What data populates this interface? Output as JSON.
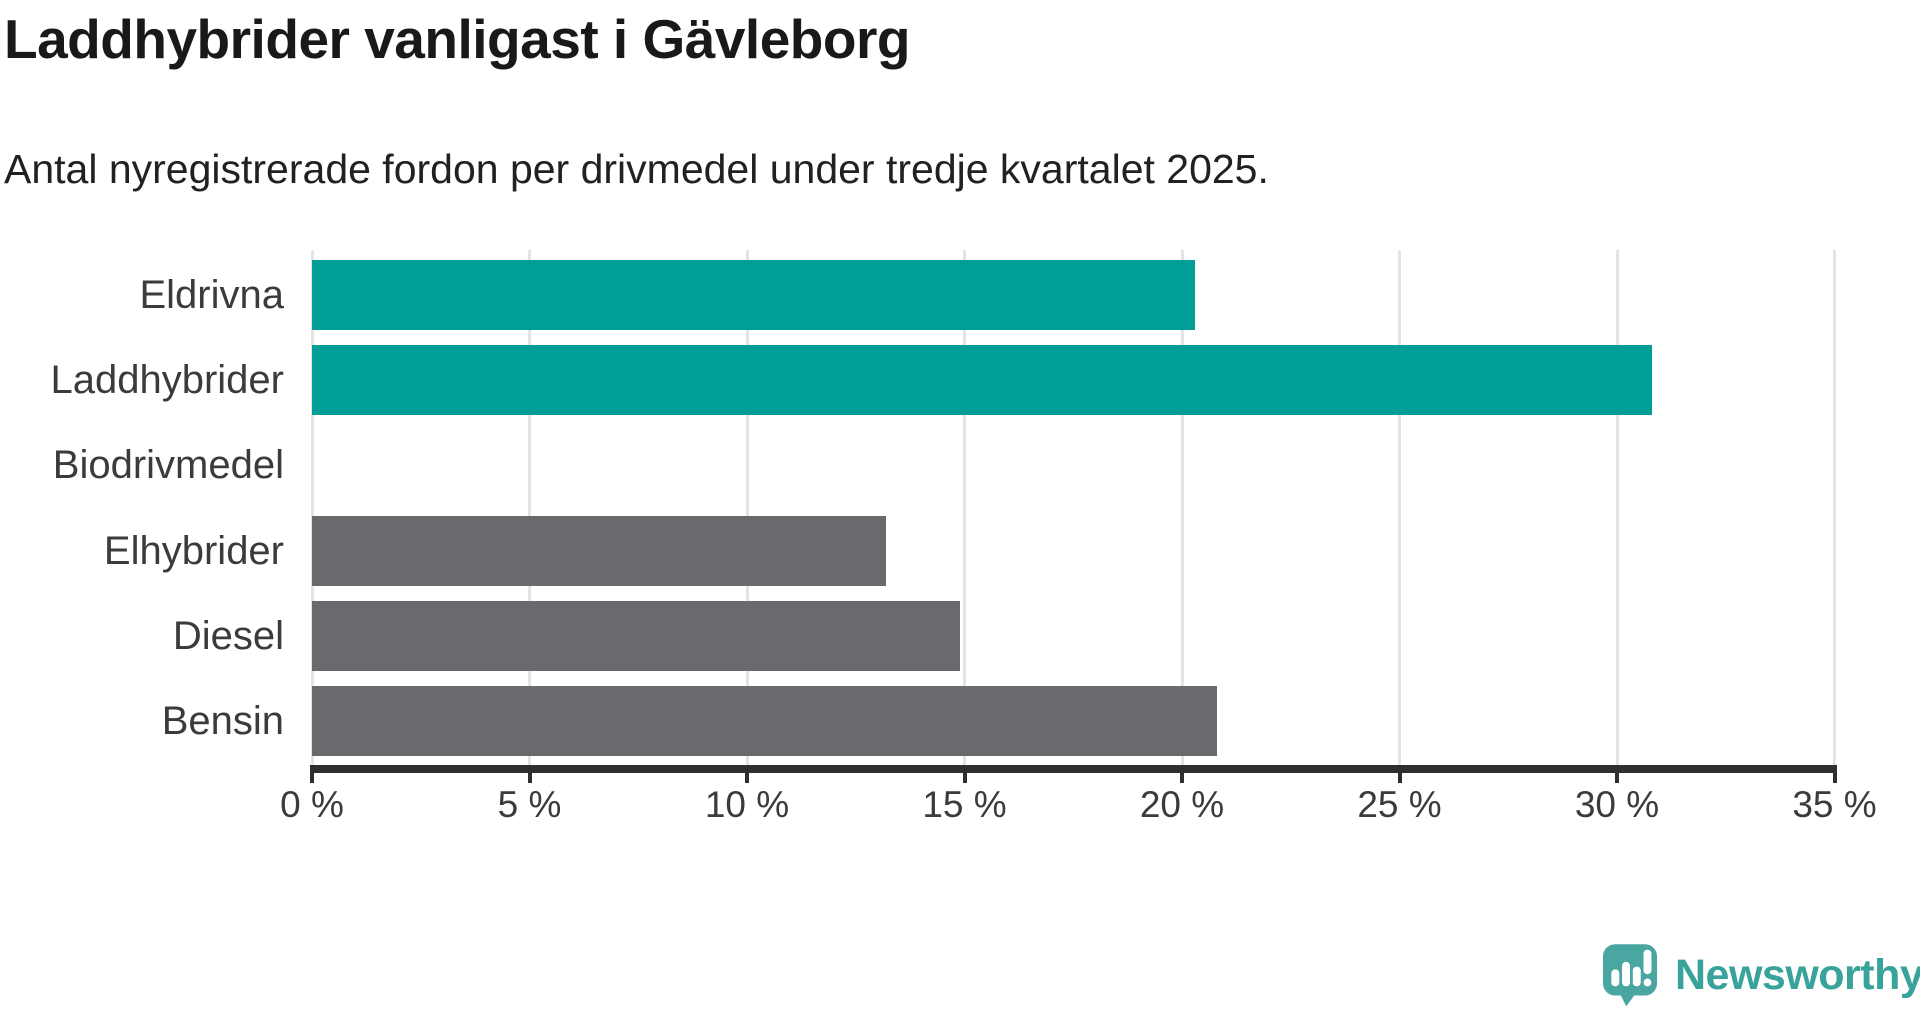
{
  "title": "Laddhybrider vanligast i Gävleborg",
  "subtitle": "Antal nyregistrerade fordon per drivmedel under tredje kvartalet 2025.",
  "chart_data": {
    "type": "bar",
    "orientation": "horizontal",
    "title": "Laddhybrider vanligast i Gävleborg",
    "subtitle": "Antal nyregistrerade fordon per drivmedel under tredje kvartalet 2025.",
    "categories": [
      "Eldrivna",
      "Laddhybrider",
      "Biodrivmedel",
      "Elhybrider",
      "Diesel",
      "Bensin"
    ],
    "values": [
      20.3,
      30.8,
      0,
      13.2,
      14.9,
      20.8
    ],
    "value_unit": "%",
    "bar_colors": [
      "#009E96",
      "#009E96",
      "#6A6A6E",
      "#6A6A6E",
      "#6A6A6E",
      "#6A6A6E"
    ],
    "xlim": [
      0,
      35
    ],
    "x_ticks": [
      0,
      5,
      10,
      15,
      20,
      25,
      30,
      35
    ],
    "x_tick_labels": [
      "0 %",
      "5 %",
      "10 %",
      "15 %",
      "20 %",
      "25 %",
      "30 %",
      "35 %"
    ],
    "grid": true,
    "legend": false
  },
  "colors": {
    "teal": "#009E96",
    "gray": "#6A6A6E",
    "axis": "#2F2F2F",
    "gridline": "#E4E4E4",
    "tick_label": "#3B3B3B",
    "category_label": "#3B3B3B",
    "title_text": "#191919",
    "subtitle_text": "#212121",
    "logo_icon": "#4AA6A0",
    "logo_text": "#38A39A"
  },
  "logo": {
    "text": "Newsworthy",
    "icon": "newsworthy-speech-bubble-chart-icon"
  }
}
